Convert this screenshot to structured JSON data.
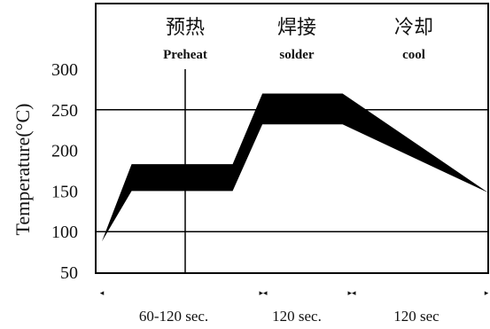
{
  "chart_data": {
    "type": "area",
    "title": "",
    "ylabel": "Temperature(°C)",
    "xlabel": "",
    "ylim": [
      50,
      300
    ],
    "yticks": [
      300,
      250,
      200,
      150,
      100,
      50
    ],
    "phases": [
      {
        "name_cn": "预热",
        "name_en": "Preheat"
      },
      {
        "name_cn": "焊接",
        "name_en": "solder"
      },
      {
        "name_cn": "冷却",
        "name_en": "cool"
      }
    ],
    "durations": [
      "60-120 sec.",
      "120 sec.",
      "120 sec"
    ],
    "band": {
      "upper": [
        [
          0,
          88
        ],
        [
          20,
          183
        ],
        [
          88,
          183
        ],
        [
          108,
          270
        ],
        [
          162,
          270
        ],
        [
          260,
          148
        ]
      ],
      "lower": [
        [
          260,
          148
        ],
        [
          162,
          232
        ],
        [
          108,
          232
        ],
        [
          88,
          150
        ],
        [
          20,
          150
        ],
        [
          0,
          88
        ]
      ]
    },
    "x_range": [
      0,
      260
    ],
    "color": "#000000"
  }
}
